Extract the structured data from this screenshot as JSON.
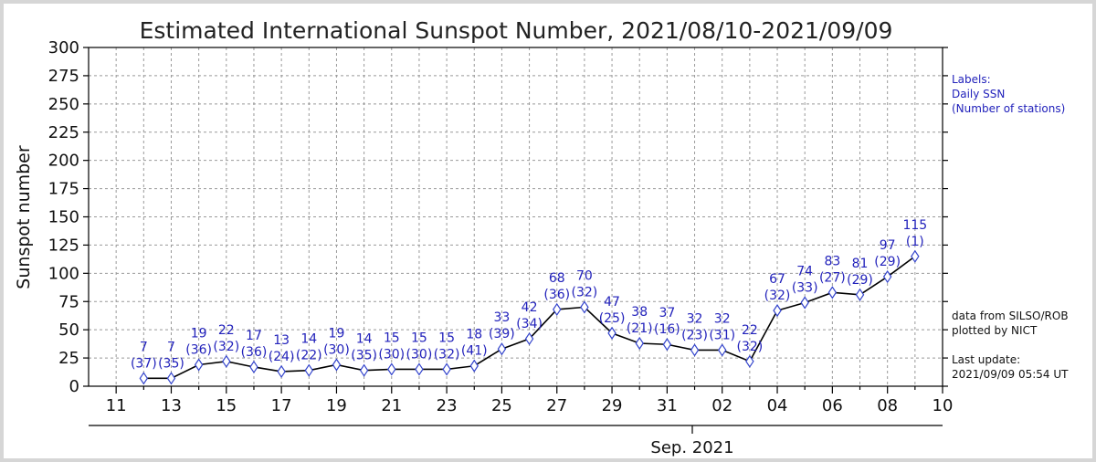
{
  "chart_data": {
    "type": "line",
    "title": "Estimated International Sunspot Number, 2021/08/10-2021/09/09",
    "ylabel": "Sunspot number",
    "ylim": [
      0,
      300
    ],
    "yticks": [
      0,
      25,
      50,
      75,
      100,
      125,
      150,
      175,
      200,
      225,
      250,
      275,
      300
    ],
    "x_start": "2021-08-10",
    "x_end": "2021-09-10",
    "xtick_labels": [
      "11",
      "13",
      "15",
      "17",
      "19",
      "21",
      "23",
      "25",
      "27",
      "29",
      "31",
      "02",
      "04",
      "06",
      "08",
      "10"
    ],
    "month_label": "Sep. 2021",
    "grid": true,
    "series": [
      {
        "x": [
          "2021-08-12",
          "2021-08-13",
          "2021-08-14",
          "2021-08-15",
          "2021-08-16",
          "2021-08-17",
          "2021-08-18",
          "2021-08-19",
          "2021-08-20",
          "2021-08-21",
          "2021-08-22",
          "2021-08-23",
          "2021-08-24",
          "2021-08-25",
          "2021-08-26",
          "2021-08-27",
          "2021-08-28",
          "2021-08-29",
          "2021-08-30",
          "2021-08-31",
          "2021-09-01",
          "2021-09-02",
          "2021-09-03",
          "2021-09-04",
          "2021-09-05",
          "2021-09-06",
          "2021-09-07",
          "2021-09-08",
          "2021-09-09"
        ],
        "values": [
          7,
          7,
          19,
          22,
          17,
          13,
          14,
          19,
          14,
          15,
          15,
          15,
          18,
          33,
          42,
          68,
          70,
          47,
          38,
          37,
          32,
          32,
          22,
          67,
          74,
          83,
          81,
          97,
          115
        ],
        "stations": [
          "(37)",
          "(35)",
          "(36)",
          "(32)",
          "(36)",
          "(24)",
          "(22)",
          "(30)",
          "(35)",
          "(30)",
          "(30)",
          "(32)",
          "(41)",
          "(39)",
          "(34)",
          "(36)",
          "(32)",
          "(25)",
          "(21)",
          "(16)",
          "(23)",
          "(31)",
          "(32)",
          "(32)",
          "(33)",
          "(27)",
          "(29)",
          "(29)",
          "(1)"
        ]
      }
    ],
    "annotations": {
      "labels_title": "Labels:",
      "labels_line1": "Daily SSN",
      "labels_line2": "(Number of stations)",
      "source_line1": "data from SILSO/ROB",
      "source_line2": "plotted by NICT",
      "update_title": "Last update:",
      "update_time": "2021/09/09 05:54 UT"
    },
    "colors": {
      "line": "#000000",
      "marker": "#3344cc",
      "label": "#2222bb",
      "grid": "#999999"
    }
  }
}
